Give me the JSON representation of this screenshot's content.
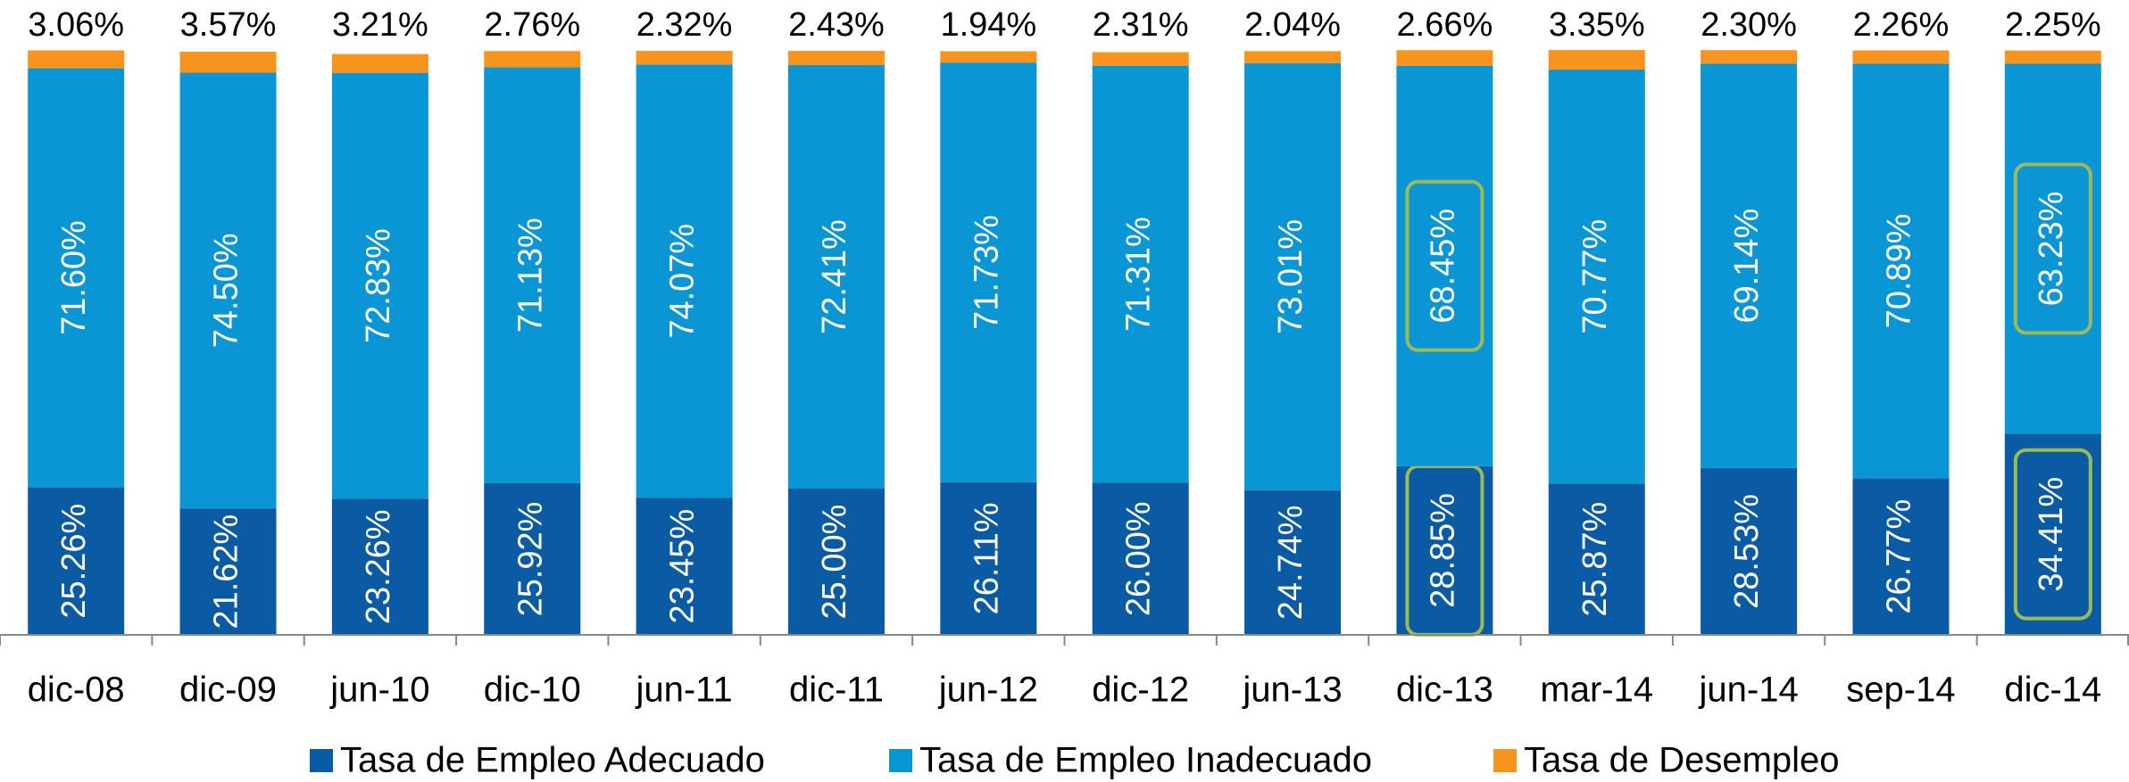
{
  "chart_data": {
    "type": "stacked_bar",
    "categories": [
      "dic-08",
      "dic-09",
      "jun-10",
      "dic-10",
      "jun-11",
      "dic-11",
      "jun-12",
      "dic-12",
      "jun-13",
      "dic-13",
      "mar-14",
      "jun-14",
      "sep-14",
      "dic-14"
    ],
    "series": [
      {
        "name": "Tasa de Empleo Adecuado",
        "color": "#0b5aa4",
        "values": [
          25.26,
          21.62,
          23.26,
          25.92,
          23.45,
          25.0,
          26.11,
          26.0,
          24.74,
          28.85,
          25.87,
          28.53,
          26.77,
          34.41
        ],
        "value_labels": [
          "25.26%",
          "21.62%",
          "23.26%",
          "25.92%",
          "23.45%",
          "25.00%",
          "26.11%",
          "26.00%",
          "24.74%",
          "28.85%",
          "25.87%",
          "28.53%",
          "26.77%",
          "34.41%"
        ]
      },
      {
        "name": "Tasa de Empleo Inadecuado",
        "color": "#0a95d5",
        "values": [
          71.6,
          74.5,
          72.83,
          71.13,
          74.07,
          72.41,
          71.73,
          71.31,
          73.01,
          68.45,
          70.77,
          69.14,
          70.89,
          63.23
        ],
        "value_labels": [
          "71.60%",
          "74.50%",
          "72.83%",
          "71.13%",
          "74.07%",
          "72.41%",
          "71.73%",
          "71.31%",
          "73.01%",
          "68.45%",
          "70.77%",
          "69.14%",
          "70.89%",
          "63.23%"
        ]
      },
      {
        "name": "Tasa de Desempleo",
        "color": "#f7941d",
        "values": [
          3.06,
          3.57,
          3.21,
          2.76,
          2.32,
          2.43,
          1.94,
          2.31,
          2.04,
          2.66,
          3.35,
          2.3,
          2.26,
          2.25
        ],
        "value_labels": [
          "3.06%",
          "3.57%",
          "3.21%",
          "2.76%",
          "2.32%",
          "2.43%",
          "1.94%",
          "2.31%",
          "2.04%",
          "2.66%",
          "3.35%",
          "2.30%",
          "2.26%",
          "2.25%"
        ]
      }
    ],
    "ylim": [
      0,
      100
    ]
  }
}
